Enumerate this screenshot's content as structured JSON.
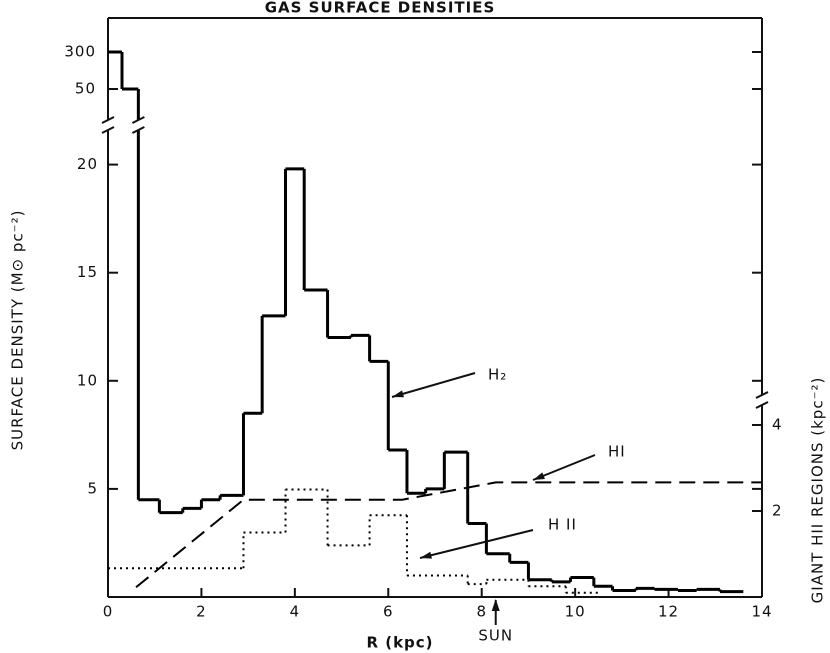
{
  "chart_data": {
    "type": "step",
    "title": "GAS SURFACE DENSITIES",
    "x_label": "R (kpc)",
    "y_label": "SURFACE DENSITY (M⊙ pc⁻²)",
    "y2_label": "GIANT HII REGIONS (kpc⁻²)",
    "xlim": [
      0,
      14
    ],
    "xticks": [
      0,
      2,
      4,
      6,
      8,
      10,
      12,
      14
    ],
    "ylim": [
      0,
      21.6
    ],
    "yticks": [
      5,
      10,
      15,
      20
    ],
    "ybreak_ticks": [
      50,
      300
    ],
    "y2lim": [
      0,
      10.86
    ],
    "y2ticks": [
      2,
      4
    ],
    "series": [
      {
        "name": "H₂",
        "type": "step",
        "color": "#000000",
        "style": "solid",
        "bins": [
          0,
          0.3,
          0.65,
          1.1,
          1.6,
          2.0,
          2.4,
          2.9,
          3.3,
          3.8,
          4.2,
          4.7,
          5.2,
          5.6,
          6.0,
          6.4,
          6.8,
          7.2,
          7.7,
          8.1,
          8.6,
          9.0,
          9.5,
          9.9,
          10.4,
          10.8,
          11.3,
          11.7,
          12.2,
          12.6,
          13.1,
          13.6
        ],
        "values": [
          300,
          50,
          4.5,
          3.9,
          4.1,
          4.5,
          4.7,
          8.5,
          13.0,
          19.8,
          14.2,
          12.0,
          12.1,
          10.9,
          6.8,
          4.8,
          5.0,
          6.7,
          3.4,
          2.0,
          1.6,
          0.8,
          0.7,
          0.9,
          0.5,
          0.3,
          0.4,
          0.35,
          0.3,
          0.35,
          0.25
        ]
      },
      {
        "name": "HI",
        "type": "line",
        "color": "#000000",
        "style": "dashed",
        "x": [
          0.6,
          2.9,
          6.3,
          8.3,
          14
        ],
        "values": [
          0.45,
          4.5,
          4.5,
          5.3,
          5.3
        ]
      },
      {
        "name": "H II",
        "type": "step",
        "axis": "y2",
        "color": "#000000",
        "style": "dotted",
        "bins": [
          0,
          2.9,
          3.8,
          4.7,
          5.6,
          6.4,
          7.7,
          8.1,
          9.0,
          9.8,
          10.5
        ],
        "values": [
          0.67,
          1.5,
          2.5,
          1.2,
          1.9,
          0.5,
          0.3,
          0.4,
          0.25,
          0.1
        ]
      }
    ],
    "marker": {
      "label": "SUN",
      "x": 8.3
    }
  }
}
